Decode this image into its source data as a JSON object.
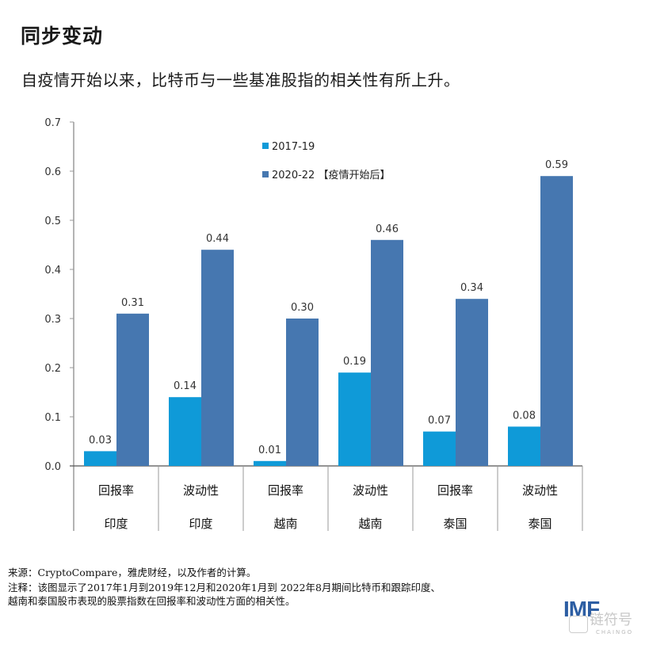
{
  "header": {
    "title": "同步变动",
    "subtitle": "自疫情开始以来，比特币与一些基准股指的相关性有所上升。"
  },
  "colors": {
    "series_2017_19": "#0f9ad8",
    "series_2020_22": "#4677b0",
    "axis": "#9a9a9a"
  },
  "chart_data": {
    "type": "bar",
    "title": "同步变动",
    "subtitle": "自疫情开始以来，比特币与一些基准股指的相关性有所上升。",
    "xlabel": "",
    "ylabel": "",
    "ylim": [
      0,
      0.7
    ],
    "yticks": [
      "0.0",
      "0.1",
      "0.2",
      "0.3",
      "0.4",
      "0.5",
      "0.6",
      "0.7"
    ],
    "grid": false,
    "legend_position": "top-center",
    "categories": [
      {
        "metric": "回报率",
        "country": "印度"
      },
      {
        "metric": "波动性",
        "country": "印度"
      },
      {
        "metric": "回报率",
        "country": "越南"
      },
      {
        "metric": "波动性",
        "country": "越南"
      },
      {
        "metric": "回报率",
        "country": "泰国"
      },
      {
        "metric": "波动性",
        "country": "泰国"
      }
    ],
    "series": [
      {
        "name": "2017-19",
        "values": [
          0.03,
          0.14,
          0.01,
          0.19,
          0.07,
          0.08
        ],
        "labels": [
          "0.03",
          "0.14",
          "0.01",
          "0.19",
          "0.07",
          "0.08"
        ]
      },
      {
        "name": "2020-22 【疫情开始后】",
        "values": [
          0.31,
          0.44,
          0.3,
          0.46,
          0.34,
          0.59
        ],
        "labels": [
          "0.31",
          "0.44",
          "0.30",
          "0.46",
          "0.34",
          "0.59"
        ]
      }
    ]
  },
  "footer": {
    "source": "来源：CryptoCompare，雅虎财经，以及作者的计算。",
    "note_line1": "注释：该图显示了2017年1月到2019年12月和2020年1月到 2022年8月期间比特币和跟踪印度、",
    "note_line2": "越南和泰国股市表现的股票指数在回报率和波动性方面的相关性。",
    "logo": "IMF",
    "watermark": "链符号",
    "watermark_sub": "CHAINGO"
  }
}
